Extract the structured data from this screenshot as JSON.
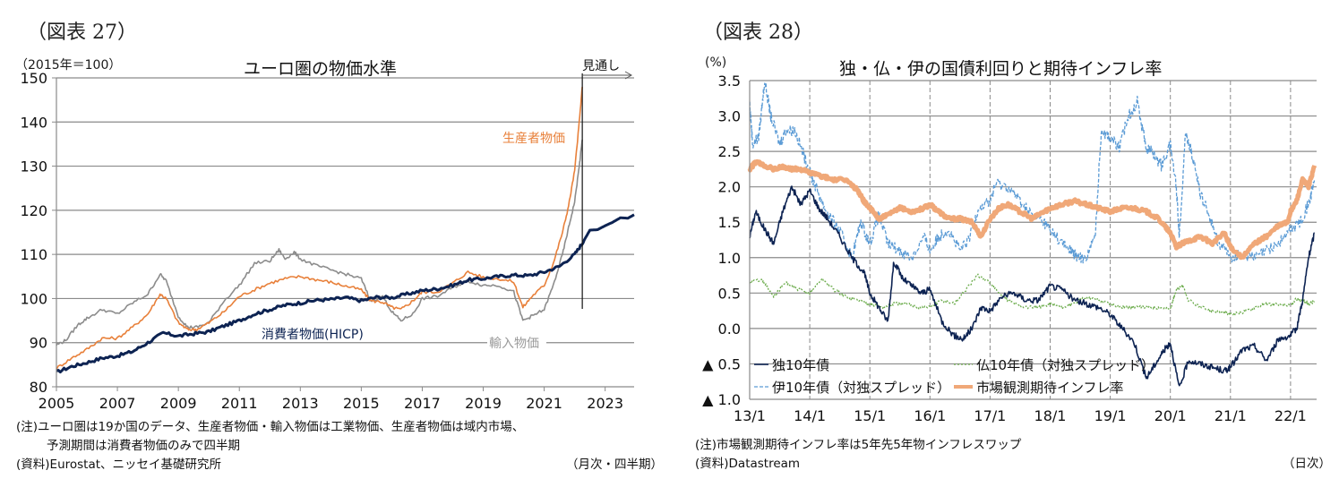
{
  "left": {
    "fig_label": "（図表 27）",
    "unit": "（2015年＝100）",
    "notes": [
      "(注)ユーロ圏は19か国のデータ、生産者物価・輸入物価は工業物価、生産者物価は域内市場、",
      "予測期間は消費者物価のみで四半期"
    ],
    "source": "(資料)Eurostat、ニッセイ基礎研究所",
    "frequency": "（月次・四半期）",
    "forecast_label": "見通し"
  },
  "right": {
    "fig_label": "（図表 28）",
    "unit": "(%)",
    "note": "(注)市場観測期待インフレ率は5年先5年物インフレスワップ",
    "source": "(資料)Datastream",
    "frequency": "（日次）"
  },
  "chart_data": [
    {
      "type": "line",
      "title": "ユーロ圏の物価水準",
      "xlabel": "",
      "ylabel": "（2015年＝100）",
      "ylim": [
        80,
        150
      ],
      "xlim": [
        2005,
        2023.95
      ],
      "yticks": [
        80,
        90,
        100,
        110,
        120,
        130,
        140,
        150
      ],
      "xticks": [
        "2005",
        "2007",
        "2009",
        "2011",
        "2013",
        "2015",
        "2017",
        "2019",
        "2021",
        "2023"
      ],
      "grid": "horizontal",
      "forecast_start": 2022.25,
      "series": [
        {
          "name": "消費者物価(HICP)",
          "color": "#0d2352",
          "x": [
            2005.0,
            2005.5,
            2006.0,
            2006.5,
            2007.0,
            2007.5,
            2008.0,
            2008.5,
            2009.0,
            2009.5,
            2010.0,
            2010.5,
            2011.0,
            2011.5,
            2012.0,
            2012.5,
            2013.0,
            2013.5,
            2014.0,
            2014.5,
            2015.0,
            2015.5,
            2016.0,
            2016.5,
            2017.0,
            2017.5,
            2018.0,
            2018.5,
            2019.0,
            2019.5,
            2020.0,
            2020.5,
            2021.0,
            2021.5,
            2022.0,
            2022.25,
            2022.5,
            2022.75,
            2023.0,
            2023.25,
            2023.5,
            2023.75,
            2023.95
          ],
          "values": [
            83.3,
            84.6,
            85.5,
            86.5,
            87.0,
            88.0,
            90.0,
            92.2,
            91.5,
            92.0,
            92.5,
            93.8,
            95.0,
            96.5,
            97.5,
            98.5,
            99.0,
            99.6,
            99.8,
            100.2,
            99.5,
            100.3,
            100.2,
            101.0,
            101.8,
            102.2,
            103.0,
            104.2,
            104.5,
            105.0,
            105.3,
            105.2,
            106.0,
            107.3,
            110.0,
            112.5,
            115.5,
            115.6,
            116.5,
            117.3,
            118.3,
            118.2,
            119.0
          ]
        },
        {
          "name": "生産者物価",
          "color": "#e8803a",
          "x": [
            2005.0,
            2005.5,
            2006.0,
            2006.5,
            2007.0,
            2007.5,
            2008.0,
            2008.4,
            2008.6,
            2009.0,
            2009.3,
            2009.6,
            2010.0,
            2010.5,
            2011.0,
            2011.5,
            2012.0,
            2012.5,
            2013.0,
            2013.5,
            2014.0,
            2014.5,
            2015.0,
            2015.3,
            2015.7,
            2016.0,
            2016.3,
            2016.7,
            2017.0,
            2017.5,
            2018.0,
            2018.5,
            2019.0,
            2019.5,
            2020.0,
            2020.3,
            2020.6,
            2021.0,
            2021.3,
            2021.6,
            2021.8,
            2022.0,
            2022.15,
            2022.25
          ],
          "values": [
            84.2,
            86.5,
            88.5,
            91.0,
            91.0,
            93.5,
            96.5,
            101.0,
            100.0,
            94.5,
            93.0,
            93.0,
            94.5,
            97.0,
            100.5,
            102.0,
            103.5,
            104.5,
            105.0,
            104.3,
            103.7,
            102.8,
            102.0,
            99.5,
            99.2,
            98.0,
            97.5,
            99.5,
            101.5,
            101.5,
            103.5,
            106.0,
            104.8,
            104.5,
            103.8,
            98.0,
            100.5,
            103.0,
            108.0,
            115.0,
            121.0,
            129.0,
            140.0,
            148.0
          ]
        },
        {
          "name": "輸入物価",
          "color": "#8c8c8c",
          "x": [
            2005.0,
            2005.3,
            2005.7,
            2006.0,
            2006.5,
            2007.0,
            2007.5,
            2008.0,
            2008.4,
            2008.6,
            2009.0,
            2009.3,
            2009.6,
            2010.0,
            2010.5,
            2011.0,
            2011.5,
            2012.0,
            2012.3,
            2012.5,
            2012.8,
            2013.0,
            2013.5,
            2014.0,
            2014.5,
            2015.0,
            2015.3,
            2015.7,
            2016.0,
            2016.3,
            2016.7,
            2017.0,
            2017.5,
            2018.0,
            2018.5,
            2019.0,
            2019.5,
            2020.0,
            2020.3,
            2020.6,
            2021.0,
            2021.3,
            2021.6,
            2021.8,
            2022.0,
            2022.15,
            2022.25
          ],
          "values": [
            89.5,
            90.5,
            94.0,
            95.5,
            97.5,
            96.5,
            99.0,
            101.0,
            105.5,
            104.0,
            96.0,
            93.5,
            93.5,
            94.5,
            99.5,
            103.0,
            108.0,
            108.5,
            111.0,
            109.0,
            110.5,
            109.0,
            107.5,
            106.5,
            105.5,
            104.5,
            99.5,
            100.5,
            97.0,
            95.0,
            96.5,
            100.0,
            100.5,
            102.5,
            104.0,
            103.0,
            103.0,
            101.5,
            95.0,
            96.0,
            97.5,
            103.0,
            110.0,
            116.0,
            122.0,
            130.0,
            136.0
          ]
        }
      ],
      "annotations": [
        "生産者物価",
        "消費者物価(HICP)",
        "輸入物価",
        "見通し"
      ]
    },
    {
      "type": "line",
      "title": "独・仏・伊の国債利回りと期待インフレ率",
      "xlabel": "",
      "ylabel": "(%)",
      "ylim": [
        -1.0,
        3.5
      ],
      "xlim": [
        2013.0,
        2022.4
      ],
      "yticks": [
        "▲ 1.0",
        "▲ 0.5",
        "0.0",
        "0.5",
        "1.0",
        "1.5",
        "2.0",
        "2.5",
        "3.0",
        "3.5"
      ],
      "ytick_values": [
        -1.0,
        -0.5,
        0.0,
        0.5,
        1.0,
        1.5,
        2.0,
        2.5,
        3.0,
        3.5
      ],
      "xticks": [
        "13/1",
        "14/1",
        "15/1",
        "16/1",
        "17/1",
        "18/1",
        "19/1",
        "20/1",
        "21/1",
        "22/1"
      ],
      "grid": "both",
      "legend": "bottom-left inside",
      "series": [
        {
          "name": "独10年債",
          "style": "solid",
          "color": "#0d2352",
          "x": [
            2013.0,
            2013.1,
            2013.25,
            2013.4,
            2013.55,
            2013.7,
            2013.85,
            2014.0,
            2014.15,
            2014.3,
            2014.5,
            2014.7,
            2014.9,
            2015.0,
            2015.15,
            2015.3,
            2015.4,
            2015.55,
            2015.7,
            2015.85,
            2016.0,
            2016.2,
            2016.4,
            2016.55,
            2016.7,
            2016.85,
            2017.0,
            2017.2,
            2017.4,
            2017.6,
            2017.8,
            2018.0,
            2018.2,
            2018.4,
            2018.6,
            2018.8,
            2019.0,
            2019.2,
            2019.4,
            2019.6,
            2019.75,
            2019.9,
            2020.0,
            2020.15,
            2020.3,
            2020.5,
            2020.7,
            2020.9,
            2021.0,
            2021.2,
            2021.4,
            2021.6,
            2021.8,
            2022.0,
            2022.1,
            2022.2,
            2022.3,
            2022.4
          ],
          "values": [
            1.3,
            1.65,
            1.4,
            1.2,
            1.65,
            2.0,
            1.75,
            1.95,
            1.7,
            1.55,
            1.3,
            1.0,
            0.8,
            0.5,
            0.3,
            0.1,
            0.95,
            0.7,
            0.6,
            0.5,
            0.55,
            0.1,
            -0.1,
            -0.15,
            0.0,
            0.3,
            0.25,
            0.45,
            0.5,
            0.4,
            0.4,
            0.6,
            0.55,
            0.4,
            0.35,
            0.3,
            0.2,
            0.0,
            -0.2,
            -0.7,
            -0.5,
            -0.3,
            -0.2,
            -0.85,
            -0.45,
            -0.5,
            -0.55,
            -0.6,
            -0.55,
            -0.3,
            -0.25,
            -0.45,
            -0.15,
            -0.1,
            0.0,
            0.4,
            1.0,
            1.35
          ]
        },
        {
          "name": "仏10年債（対独スプレッド）",
          "style": "dotted",
          "color": "#6aab4a",
          "x": [
            2013.0,
            2013.2,
            2013.4,
            2013.6,
            2013.8,
            2014.0,
            2014.2,
            2014.4,
            2014.6,
            2014.8,
            2015.0,
            2015.2,
            2015.4,
            2015.6,
            2015.8,
            2016.0,
            2016.2,
            2016.4,
            2016.6,
            2016.8,
            2017.0,
            2017.2,
            2017.4,
            2017.6,
            2017.8,
            2018.0,
            2018.2,
            2018.4,
            2018.6,
            2018.8,
            2019.0,
            2019.2,
            2019.4,
            2019.6,
            2019.8,
            2020.0,
            2020.1,
            2020.2,
            2020.3,
            2020.5,
            2020.7,
            2020.9,
            2021.0,
            2021.2,
            2021.4,
            2021.6,
            2021.8,
            2022.0,
            2022.1,
            2022.2,
            2022.3,
            2022.4
          ],
          "values": [
            0.65,
            0.7,
            0.45,
            0.65,
            0.55,
            0.5,
            0.7,
            0.55,
            0.45,
            0.4,
            0.35,
            0.3,
            0.35,
            0.35,
            0.3,
            0.3,
            0.4,
            0.35,
            0.55,
            0.75,
            0.65,
            0.45,
            0.35,
            0.3,
            0.3,
            0.35,
            0.3,
            0.35,
            0.45,
            0.4,
            0.35,
            0.3,
            0.3,
            0.3,
            0.3,
            0.28,
            0.55,
            0.6,
            0.4,
            0.3,
            0.25,
            0.22,
            0.2,
            0.23,
            0.3,
            0.35,
            0.33,
            0.32,
            0.42,
            0.4,
            0.35,
            0.38
          ]
        },
        {
          "name": "伊10年債（対独スプレッド）",
          "style": "dashed",
          "color": "#5b9bd5",
          "x": [
            2013.0,
            2013.05,
            2013.15,
            2013.25,
            2013.35,
            2013.5,
            2013.6,
            2013.75,
            2013.9,
            2014.0,
            2014.1,
            2014.25,
            2014.4,
            2014.55,
            2014.7,
            2014.85,
            2015.0,
            2015.15,
            2015.3,
            2015.5,
            2015.7,
            2015.9,
            2016.0,
            2016.15,
            2016.3,
            2016.5,
            2016.65,
            2016.8,
            2017.0,
            2017.1,
            2017.3,
            2017.5,
            2017.7,
            2017.9,
            2018.0,
            2018.2,
            2018.35,
            2018.45,
            2018.6,
            2018.75,
            2018.85,
            2019.0,
            2019.15,
            2019.3,
            2019.45,
            2019.6,
            2019.7,
            2019.85,
            2020.0,
            2020.1,
            2020.15,
            2020.25,
            2020.35,
            2020.5,
            2020.65,
            2020.8,
            2021.0,
            2021.2,
            2021.4,
            2021.6,
            2021.8,
            2022.0,
            2022.15,
            2022.3,
            2022.4
          ],
          "values": [
            3.2,
            2.6,
            2.7,
            3.5,
            3.0,
            2.6,
            2.8,
            2.8,
            2.45,
            2.2,
            2.0,
            1.7,
            1.5,
            1.3,
            1.0,
            1.5,
            1.2,
            1.6,
            1.2,
            1.1,
            1.0,
            1.3,
            1.1,
            1.3,
            1.4,
            1.1,
            1.25,
            1.7,
            1.8,
            2.05,
            2.0,
            1.8,
            1.6,
            1.5,
            1.4,
            1.2,
            1.1,
            1.0,
            1.0,
            1.3,
            2.8,
            2.7,
            2.55,
            3.0,
            3.2,
            2.55,
            2.5,
            2.3,
            2.6,
            2.0,
            1.3,
            2.75,
            2.5,
            1.9,
            1.6,
            1.2,
            1.0,
            1.05,
            1.0,
            1.1,
            1.2,
            1.4,
            1.5,
            1.75,
            2.1
          ]
        },
        {
          "name": "市場観測期待インフレ率",
          "style": "thick",
          "color": "#f0a878",
          "x": [
            2013.0,
            2013.1,
            2013.25,
            2013.4,
            2013.55,
            2013.7,
            2013.85,
            2014.0,
            2014.2,
            2014.4,
            2014.6,
            2014.8,
            2014.9,
            2015.0,
            2015.15,
            2015.3,
            2015.5,
            2015.7,
            2015.9,
            2016.0,
            2016.15,
            2016.3,
            2016.5,
            2016.7,
            2016.85,
            2017.0,
            2017.15,
            2017.3,
            2017.5,
            2017.7,
            2017.9,
            2018.0,
            2018.2,
            2018.4,
            2018.6,
            2018.8,
            2019.0,
            2019.2,
            2019.4,
            2019.6,
            2019.8,
            2019.95,
            2020.0,
            2020.1,
            2020.2,
            2020.35,
            2020.5,
            2020.7,
            2020.9,
            2021.0,
            2021.2,
            2021.4,
            2021.6,
            2021.8,
            2021.95,
            2022.0,
            2022.1,
            2022.2,
            2022.3,
            2022.4
          ],
          "values": [
            2.25,
            2.35,
            2.3,
            2.25,
            2.28,
            2.25,
            2.25,
            2.2,
            2.15,
            2.1,
            2.1,
            1.95,
            1.8,
            1.7,
            1.55,
            1.6,
            1.7,
            1.65,
            1.7,
            1.75,
            1.65,
            1.55,
            1.55,
            1.5,
            1.3,
            1.55,
            1.7,
            1.75,
            1.65,
            1.55,
            1.65,
            1.7,
            1.75,
            1.8,
            1.75,
            1.7,
            1.65,
            1.7,
            1.7,
            1.65,
            1.55,
            1.4,
            1.35,
            1.15,
            1.2,
            1.25,
            1.3,
            1.2,
            1.35,
            1.15,
            1.0,
            1.2,
            1.3,
            1.45,
            1.5,
            1.65,
            1.8,
            2.1,
            2.0,
            2.3
          ]
        }
      ]
    }
  ]
}
